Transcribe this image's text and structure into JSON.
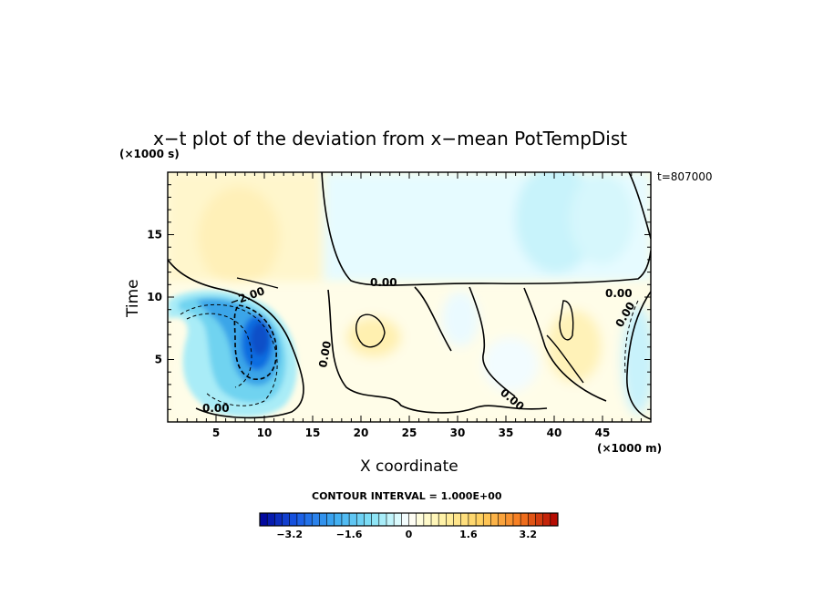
{
  "chart_data": {
    "type": "heatmap",
    "title": "x−t plot of the deviation from x−mean PotTempDist",
    "xlabel": "X coordinate",
    "ylabel": "Time",
    "x_unit_label": "(×1000 m)",
    "y_unit_label": "(×1000 s)",
    "time_stamp": "t=807000",
    "contour_interval_text": "CONTOUR INTERVAL = 1.000E+00",
    "xlim": [
      0,
      50
    ],
    "ylim": [
      0,
      20
    ],
    "x_ticks": [
      "5",
      "10",
      "15",
      "20",
      "25",
      "30",
      "35",
      "40",
      "45"
    ],
    "y_ticks": [
      "5",
      "10",
      "15"
    ],
    "contour_labels": [
      "0.00",
      "0.00",
      "0.00",
      "−2.00",
      "0.00",
      "0.00",
      "0.00"
    ],
    "colorbar": {
      "min": -4.0,
      "max": 4.0,
      "step": 0.2,
      "tick_labels": [
        "−3.2",
        "−1.6",
        "0",
        "1.6",
        "3.2"
      ],
      "tick_values": [
        -3.2,
        -1.6,
        0,
        1.6,
        3.2
      ]
    }
  }
}
